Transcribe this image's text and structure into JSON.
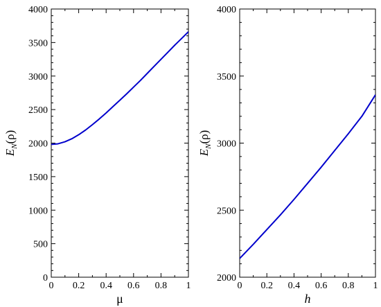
{
  "chart_data": [
    {
      "type": "line",
      "xlabel": "μ",
      "xlabel_italic": false,
      "ylabel": {
        "main": "E",
        "sub": "N",
        "arg": "(ρ)"
      },
      "xlim": [
        0,
        1
      ],
      "ylim": [
        0,
        4000
      ],
      "xticks": [
        0,
        0.2,
        0.4,
        0.6,
        0.8,
        1
      ],
      "xtick_labels": [
        "0",
        "0.2",
        "0.4",
        "0.6",
        "0.8",
        "1"
      ],
      "yticks": [
        0,
        500,
        1000,
        1500,
        2000,
        2500,
        3000,
        3500,
        4000
      ],
      "ytick_labels": [
        "0",
        "500",
        "1000",
        "1500",
        "2000",
        "2500",
        "3000",
        "3500",
        "4000"
      ],
      "grid": false,
      "series": [
        {
          "color": "#0000cc",
          "x": [
            0,
            0.05,
            0.1,
            0.15,
            0.2,
            0.25,
            0.3,
            0.35,
            0.4,
            0.45,
            0.5,
            0.55,
            0.6,
            0.65,
            0.7,
            0.75,
            0.8,
            0.85,
            0.9,
            0.95,
            1
          ],
          "y": [
            1980,
            1990,
            2020,
            2065,
            2125,
            2195,
            2275,
            2360,
            2450,
            2545,
            2640,
            2735,
            2835,
            2935,
            3040,
            3145,
            3250,
            3355,
            3460,
            3560,
            3660
          ]
        }
      ]
    },
    {
      "type": "line",
      "xlabel": "h",
      "xlabel_italic": true,
      "ylabel": {
        "main": "E",
        "sub": "N",
        "arg": "(ρ)"
      },
      "xlim": [
        0,
        1
      ],
      "ylim": [
        2000,
        4000
      ],
      "xticks": [
        0,
        0.2,
        0.4,
        0.6,
        0.8,
        1
      ],
      "xtick_labels": [
        "0",
        "0.2",
        "0.4",
        "0.6",
        "0.8",
        "1"
      ],
      "yticks": [
        2000,
        2500,
        3000,
        3500,
        4000
      ],
      "ytick_labels": [
        "2000",
        "2500",
        "3000",
        "3500",
        "4000"
      ],
      "grid": false,
      "series": [
        {
          "color": "#0000cc",
          "x": [
            0,
            0.1,
            0.2,
            0.3,
            0.4,
            0.5,
            0.6,
            0.7,
            0.8,
            0.9,
            1
          ],
          "y": [
            2140,
            2245,
            2355,
            2465,
            2580,
            2700,
            2820,
            2945,
            3070,
            3200,
            3360
          ]
        }
      ]
    }
  ]
}
